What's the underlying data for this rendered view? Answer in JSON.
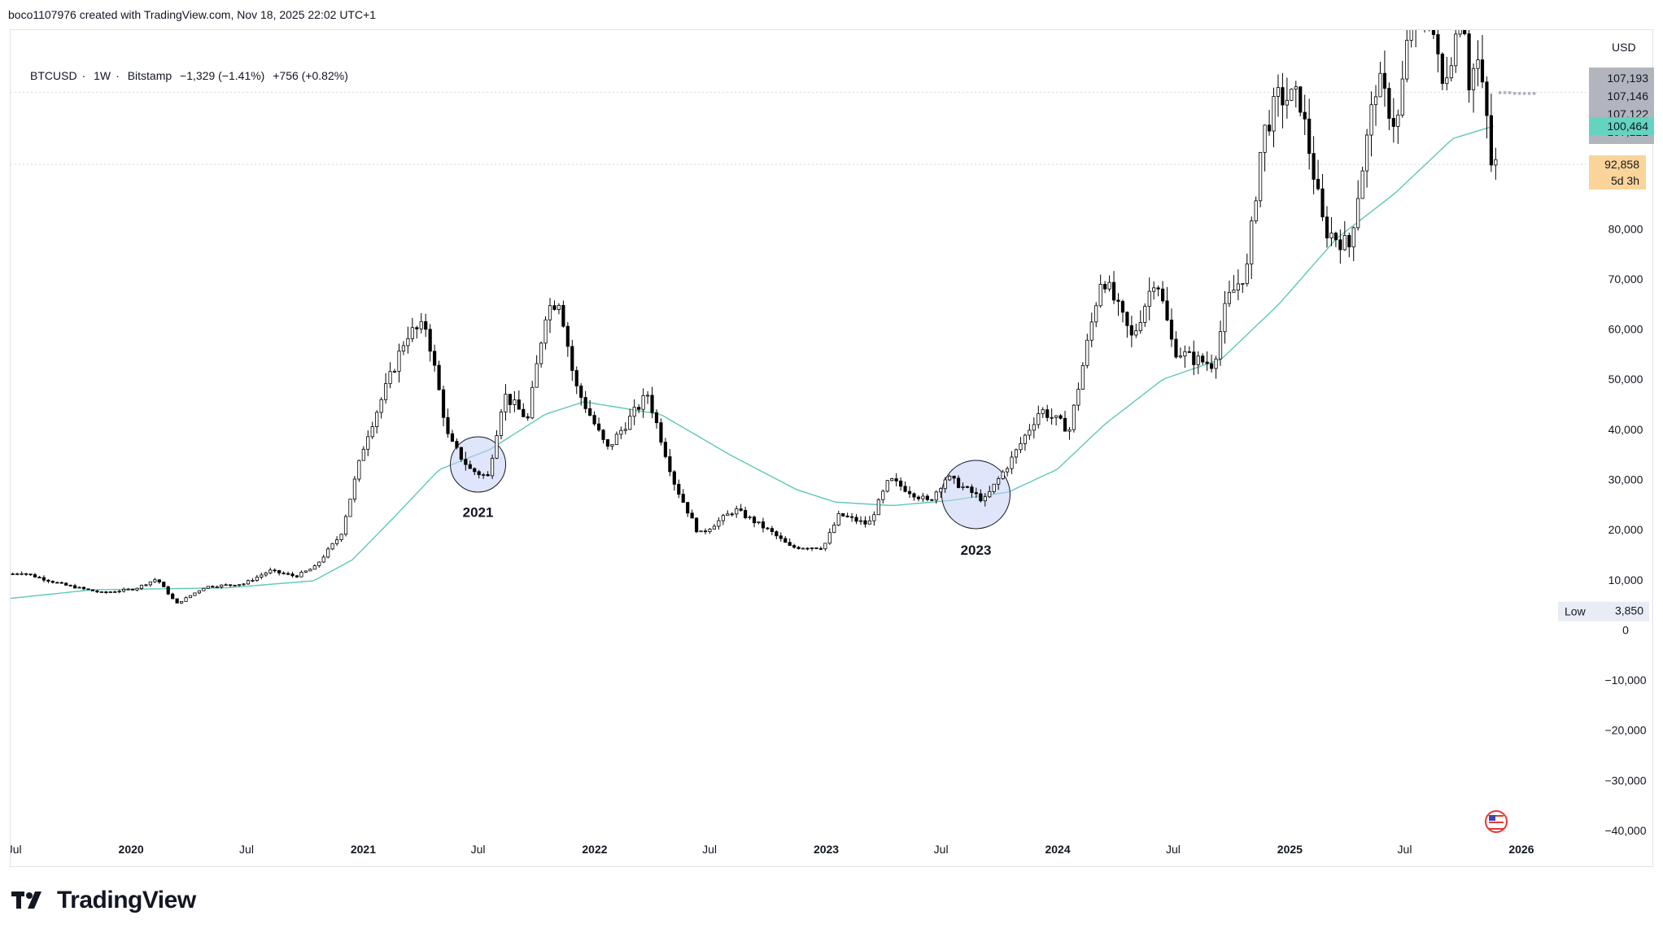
{
  "attribution": "boco1107976 created with TradingView.com, Nov 18, 2025 22:02 UTC+1",
  "legend": {
    "symbol": "BTCUSD",
    "interval": "1W",
    "exchange": "Bitstamp",
    "change_1": "−1,329 (−1.41%)",
    "change_2": "+756 (+0.82%)"
  },
  "brand": {
    "name": "TradingView",
    "logo_icon": "tradingview-logo-icon"
  },
  "axis": {
    "currency": "USD"
  },
  "badges": {
    "levels": [
      "107,193",
      "107,146",
      "107,122",
      "107,121"
    ],
    "ma": "100,464",
    "last_price": "92,858",
    "countdown": "5d 3h",
    "low_label": "Low",
    "low_value": "3,850"
  },
  "colors": {
    "up": "#ffffff",
    "down": "#000000",
    "wick": "#000000",
    "ma": "#5ec8b6",
    "circle_fill": "#c5cff5",
    "circle_stroke": "#131722",
    "level_badge": "#b2b5be",
    "ma_badge": "#64d4c0",
    "price_badge": "#fbd49a"
  },
  "chart_data": {
    "type": "candlestick",
    "ylim": [
      -40000,
      118000
    ],
    "yticks": [
      -40000,
      -30000,
      -20000,
      -10000,
      0,
      10000,
      20000,
      30000,
      40000,
      50000,
      60000,
      70000,
      80000
    ],
    "ytick_labels": [
      "−40,000",
      "−30,000",
      "−20,000",
      "−10,000",
      "0",
      "10,000",
      "20,000",
      "30,000",
      "40,000",
      "50,000",
      "60,000",
      "70,000",
      "80,000"
    ],
    "x_start": "2019-06-25",
    "xlim": [
      "2019-06-25",
      "2026-04-15"
    ],
    "xticks": [
      {
        "date": "2019-07-01",
        "label": "Jul",
        "bold": false
      },
      {
        "date": "2020-01-01",
        "label": "2020",
        "bold": true
      },
      {
        "date": "2020-07-01",
        "label": "Jul",
        "bold": false
      },
      {
        "date": "2021-01-01",
        "label": "2021",
        "bold": true
      },
      {
        "date": "2021-07-01",
        "label": "Jul",
        "bold": false
      },
      {
        "date": "2022-01-01",
        "label": "2022",
        "bold": true
      },
      {
        "date": "2022-07-01",
        "label": "Jul",
        "bold": false
      },
      {
        "date": "2023-01-01",
        "label": "2023",
        "bold": true
      },
      {
        "date": "2023-07-01",
        "label": "Jul",
        "bold": false
      },
      {
        "date": "2024-01-01",
        "label": "2024",
        "bold": true
      },
      {
        "date": "2024-07-01",
        "label": "Jul",
        "bold": false
      },
      {
        "date": "2025-01-01",
        "label": "2025",
        "bold": true
      },
      {
        "date": "2025-07-01",
        "label": "Jul",
        "bold": false
      },
      {
        "date": "2026-01-01",
        "label": "2026",
        "bold": true
      }
    ],
    "price_anchors": [
      [
        "2019-06-25",
        11000
      ],
      [
        "2019-07-15",
        11500
      ],
      [
        "2019-09-20",
        9000
      ],
      [
        "2019-11-20",
        7400
      ],
      [
        "2020-01-10",
        8200
      ],
      [
        "2020-02-14",
        10200
      ],
      [
        "2020-03-16",
        5200
      ],
      [
        "2020-04-30",
        8600
      ],
      [
        "2020-06-30",
        9200
      ],
      [
        "2020-08-10",
        11800
      ],
      [
        "2020-09-20",
        10700
      ],
      [
        "2020-10-20",
        12500
      ],
      [
        "2020-11-30",
        19000
      ],
      [
        "2021-01-08",
        38000
      ],
      [
        "2021-02-21",
        52000
      ],
      [
        "2021-03-14",
        59000
      ],
      [
        "2021-04-14",
        60500
      ],
      [
        "2021-05-19",
        38000
      ],
      [
        "2021-06-22",
        32000
      ],
      [
        "2021-07-20",
        30500
      ],
      [
        "2021-08-14",
        47000
      ],
      [
        "2021-09-21",
        42000
      ],
      [
        "2021-10-20",
        64000
      ],
      [
        "2021-11-10",
        66000
      ],
      [
        "2021-12-04",
        49000
      ],
      [
        "2022-01-24",
        36000
      ],
      [
        "2022-03-29",
        47000
      ],
      [
        "2022-05-11",
        29000
      ],
      [
        "2022-06-18",
        19000
      ],
      [
        "2022-08-14",
        24000
      ],
      [
        "2022-10-10",
        19500
      ],
      [
        "2022-11-09",
        16500
      ],
      [
        "2022-12-31",
        16500
      ],
      [
        "2023-01-25",
        23000
      ],
      [
        "2023-03-12",
        21000
      ],
      [
        "2023-04-14",
        30000
      ],
      [
        "2023-06-15",
        25500
      ],
      [
        "2023-07-13",
        30500
      ],
      [
        "2023-09-11",
        25800
      ],
      [
        "2023-10-26",
        34500
      ],
      [
        "2023-12-08",
        44000
      ],
      [
        "2024-01-23",
        40000
      ],
      [
        "2024-03-14",
        71000
      ],
      [
        "2024-05-01",
        58000
      ],
      [
        "2024-06-07",
        71000
      ],
      [
        "2024-07-05",
        56000
      ],
      [
        "2024-08-05",
        54000
      ],
      [
        "2024-09-06",
        53000
      ],
      [
        "2024-09-27",
        65500
      ],
      [
        "2024-10-29",
        72000
      ],
      [
        "2024-11-22",
        98500
      ],
      [
        "2024-12-17",
        106000
      ],
      [
        "2025-01-20",
        106000
      ],
      [
        "2025-02-27",
        80000
      ],
      [
        "2025-04-08",
        76500
      ],
      [
        "2025-05-22",
        110000
      ],
      [
        "2025-06-22",
        100000
      ],
      [
        "2025-07-14",
        122000
      ],
      [
        "2025-08-14",
        123000
      ],
      [
        "2025-09-01",
        108000
      ],
      [
        "2025-10-06",
        125000
      ],
      [
        "2025-10-10",
        108000
      ],
      [
        "2025-10-27",
        114000
      ],
      [
        "2025-11-12",
        101000
      ],
      [
        "2025-11-18",
        92858
      ]
    ],
    "ma_anchors": [
      [
        "2019-06-25",
        6300
      ],
      [
        "2019-11-01",
        8000
      ],
      [
        "2020-06-01",
        8400
      ],
      [
        "2020-10-15",
        9800
      ],
      [
        "2020-12-15",
        14000
      ],
      [
        "2021-02-15",
        22000
      ],
      [
        "2021-05-01",
        32000
      ],
      [
        "2021-07-20",
        36000
      ],
      [
        "2021-10-15",
        43000
      ],
      [
        "2021-12-15",
        45500
      ],
      [
        "2022-04-15",
        43000
      ],
      [
        "2022-08-01",
        35000
      ],
      [
        "2022-11-15",
        28000
      ],
      [
        "2023-01-15",
        25500
      ],
      [
        "2023-04-15",
        24800
      ],
      [
        "2023-07-15",
        25800
      ],
      [
        "2023-10-15",
        27500
      ],
      [
        "2023-12-31",
        32000
      ],
      [
        "2024-03-15",
        41000
      ],
      [
        "2024-06-15",
        50000
      ],
      [
        "2024-09-15",
        54000
      ],
      [
        "2024-12-15",
        65000
      ],
      [
        "2025-03-15",
        78000
      ],
      [
        "2025-06-15",
        87000
      ],
      [
        "2025-09-15",
        98000
      ],
      [
        "2025-11-18",
        100464
      ]
    ],
    "annotations": [
      {
        "label": "2021",
        "date": "2021-07-01",
        "price": 33000,
        "radius": 34,
        "label_price": 22500
      },
      {
        "label": "2023",
        "date": "2023-08-25",
        "price": 27000,
        "radius": 42,
        "label_price": 15000
      }
    ],
    "horizontal_lines": [
      107193,
      92858
    ],
    "levels": [
      107193,
      107146,
      107122,
      107121
    ],
    "ma_value": 100464,
    "last_price": 92858,
    "low": 3850
  }
}
